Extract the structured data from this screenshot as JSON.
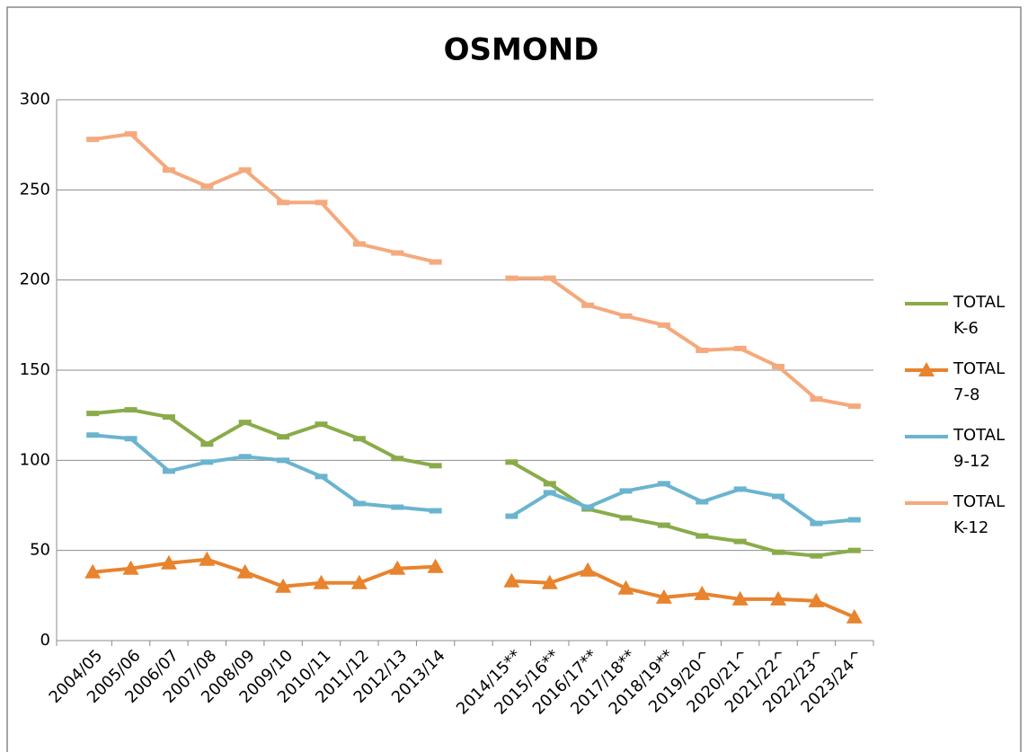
{
  "chart_data": {
    "type": "line",
    "title": "OSMOND",
    "categories": [
      "2004/05",
      "2005/06",
      "2006/07",
      "2007/08",
      "2008/09",
      "2009/10",
      "2010/11",
      "2011/12",
      "2012/13",
      "2013/14",
      null,
      "2014/15**",
      "2015/16**",
      "2016/17**",
      "2017/18**",
      "2018/19**",
      "2019/20^",
      "2020/21^",
      "2021/22^",
      "2022/23^",
      "2023/24^"
    ],
    "series": [
      {
        "name": "TOTAL K-6",
        "color": "#8aab4a",
        "marker": "dash",
        "values": [
          126,
          128,
          124,
          109,
          121,
          113,
          120,
          112,
          101,
          97,
          null,
          99,
          87,
          73,
          68,
          64,
          58,
          55,
          49,
          47,
          50
        ]
      },
      {
        "name": "TOTAL 7-8",
        "color": "#e8832e",
        "marker": "triangle",
        "values": [
          38,
          40,
          43,
          45,
          38,
          30,
          32,
          32,
          40,
          41,
          null,
          33,
          32,
          39,
          29,
          24,
          26,
          23,
          23,
          22,
          13
        ]
      },
      {
        "name": "TOTAL 9-12",
        "color": "#6ab4cf",
        "marker": "dash",
        "values": [
          114,
          112,
          94,
          99,
          102,
          100,
          91,
          76,
          74,
          72,
          null,
          69,
          82,
          74,
          83,
          87,
          77,
          84,
          80,
          65,
          67
        ]
      },
      {
        "name": "TOTAL K-12",
        "color": "#f5a97c",
        "marker": "dash",
        "values": [
          278,
          281,
          261,
          252,
          261,
          243,
          243,
          220,
          215,
          210,
          null,
          201,
          201,
          186,
          180,
          175,
          161,
          162,
          152,
          134,
          130
        ]
      }
    ],
    "ylim": [
      0,
      300
    ],
    "yticks": [
      0,
      50,
      100,
      150,
      200,
      250,
      300
    ],
    "grid": true,
    "legend": "right"
  }
}
